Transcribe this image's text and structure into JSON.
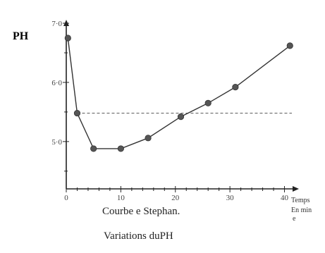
{
  "chart_data": {
    "type": "line",
    "ylabel": "PH",
    "xlabel_lines": [
      "Temps",
      "En min",
      "e"
    ],
    "title": "Courbe e Stephan.",
    "subtitle": "Variations duPH",
    "x_ticks": [
      "0",
      "10",
      "20",
      "30",
      "40"
    ],
    "y_ticks": [
      "5·0",
      "6·0",
      "7·0"
    ],
    "xlim": [
      0,
      42
    ],
    "ylim": [
      4.2,
      7.0
    ],
    "reference_line": {
      "y": 5.48,
      "style": "dashed"
    },
    "series": [
      {
        "points": [
          {
            "x": 0.3,
            "y": 6.75
          },
          {
            "x": 2,
            "y": 5.48
          },
          {
            "x": 5,
            "y": 4.88
          },
          {
            "x": 10,
            "y": 4.88
          },
          {
            "x": 15,
            "y": 5.06
          },
          {
            "x": 21,
            "y": 5.42
          },
          {
            "x": 26,
            "y": 5.65
          },
          {
            "x": 31,
            "y": 5.92
          },
          {
            "x": 41,
            "y": 6.62
          }
        ]
      }
    ],
    "colors": {
      "line": "#333333",
      "marker": "#555555",
      "axis": "#222222"
    }
  }
}
